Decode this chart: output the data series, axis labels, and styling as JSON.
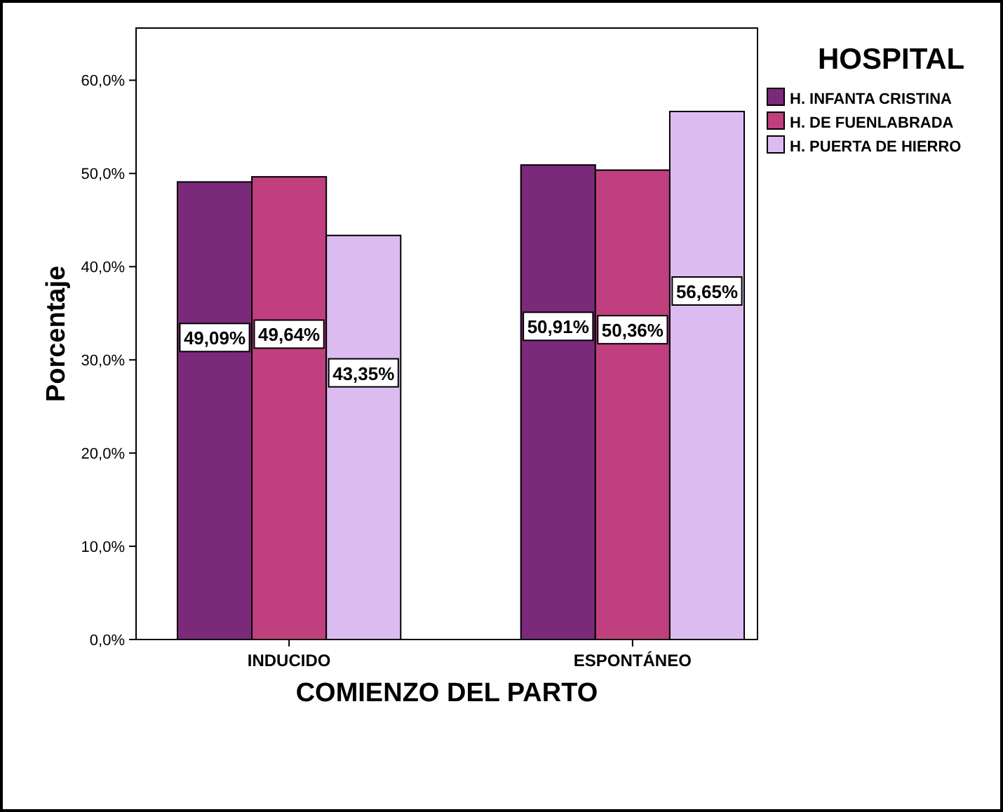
{
  "chart_data": {
    "type": "bar",
    "xlabel": "COMIENZO DEL PARTO",
    "ylabel": "Porcentaje",
    "legend_title": "HOSPITAL",
    "legend": "top right",
    "categories": [
      "INDUCIDO",
      "ESPONTÁNEO"
    ],
    "series": [
      {
        "name": "H. INFANTA CRISTINA",
        "color": "#7b2a7b",
        "values": [
          49.09,
          50.91
        ],
        "value_labels": [
          "49,09%",
          "50,91%"
        ]
      },
      {
        "name": "H. DE FUENLABRADA",
        "color": "#bf3f7f",
        "values": [
          49.64,
          50.36
        ],
        "value_labels": [
          "49,64%",
          "50,36%"
        ]
      },
      {
        "name": "H. PUERTA DE HIERRO",
        "color": "#dcbcf0",
        "values": [
          43.35,
          56.65
        ],
        "value_labels": [
          "43,35%",
          "56,65%"
        ]
      }
    ],
    "ylim": [
      0,
      65.6
    ],
    "yticks": [
      {
        "value": 0,
        "label": "0,0%"
      },
      {
        "value": 10,
        "label": "10,0%"
      },
      {
        "value": 20,
        "label": "20,0%"
      },
      {
        "value": 30,
        "label": "30,0%"
      },
      {
        "value": 40,
        "label": "40,0%"
      },
      {
        "value": 50,
        "label": "50,0%"
      },
      {
        "value": 60,
        "label": "60,0%"
      }
    ],
    "grid": false
  }
}
